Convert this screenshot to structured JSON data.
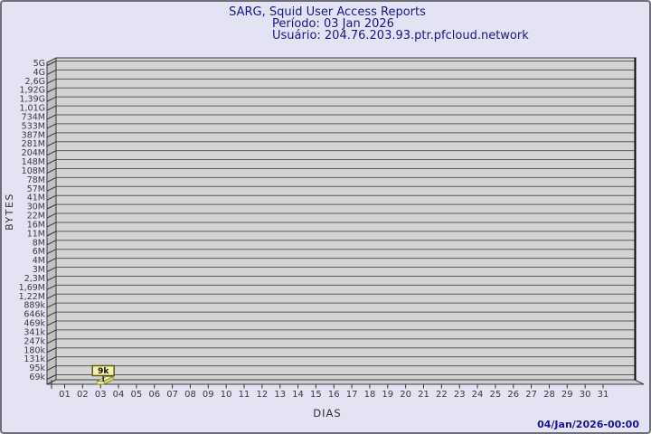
{
  "window": {
    "background": "#E3E3F3",
    "border": "#6E6E78"
  },
  "header": {
    "title": "SARG, Squid User Access Reports",
    "period": "Período: 03 Jan 2026",
    "user": "Usuário: 204.76.203.93.ptr.pfcloud.network"
  },
  "footer": {
    "generated": "04/Jan/2026-00:00"
  },
  "chart_data": {
    "type": "bar",
    "style": "3d-single-series",
    "title": "SARG, Squid User Access Reports",
    "xlabel": "DIAS",
    "ylabel": "BYTES",
    "y_scale": "log",
    "grid": "horizontal",
    "legend": "none",
    "y_tick_labels": [
      "5G",
      "4G",
      "2,6G",
      "1,92G",
      "1,39G",
      "1,01G",
      "734M",
      "533M",
      "387M",
      "281M",
      "204M",
      "148M",
      "108M",
      "78M",
      "57M",
      "41M",
      "30M",
      "22M",
      "16M",
      "11M",
      "8M",
      "6M",
      "4M",
      "3M",
      "2,3M",
      "1,69M",
      "1,22M",
      "889k",
      "646k",
      "469k",
      "341k",
      "247k",
      "180k",
      "131k",
      "95k",
      "69k"
    ],
    "categories": [
      "01",
      "02",
      "03",
      "04",
      "05",
      "06",
      "07",
      "08",
      "09",
      "10",
      "11",
      "12",
      "13",
      "14",
      "15",
      "16",
      "17",
      "18",
      "19",
      "20",
      "21",
      "22",
      "23",
      "24",
      "25",
      "26",
      "27",
      "28",
      "29",
      "30",
      "31"
    ],
    "values": [
      null,
      null,
      9000,
      null,
      null,
      null,
      null,
      null,
      null,
      null,
      null,
      null,
      null,
      null,
      null,
      null,
      null,
      null,
      null,
      null,
      null,
      null,
      null,
      null,
      null,
      null,
      null,
      null,
      null,
      null,
      null
    ],
    "annotations": [
      {
        "category": "03",
        "text": "9k"
      }
    ],
    "colors": {
      "plot_bg": "#D4D4D4",
      "wall": "#C2C2C2",
      "floor": "#CFCFCF",
      "grid": "#5A5A5A",
      "frame": "#3A3A3A",
      "right_border": "#000000",
      "bar": "#F0E9A6",
      "bar_top": "#F4EFB8",
      "bar_side": "#DAD18C",
      "bar_outline": "#80801E",
      "annotation_bg": "#F5F1A8",
      "annotation_border": "#5A5A14",
      "annotation_text": "#111111",
      "axis_text": "#3A3A3A",
      "title_text": "#17178C"
    }
  }
}
